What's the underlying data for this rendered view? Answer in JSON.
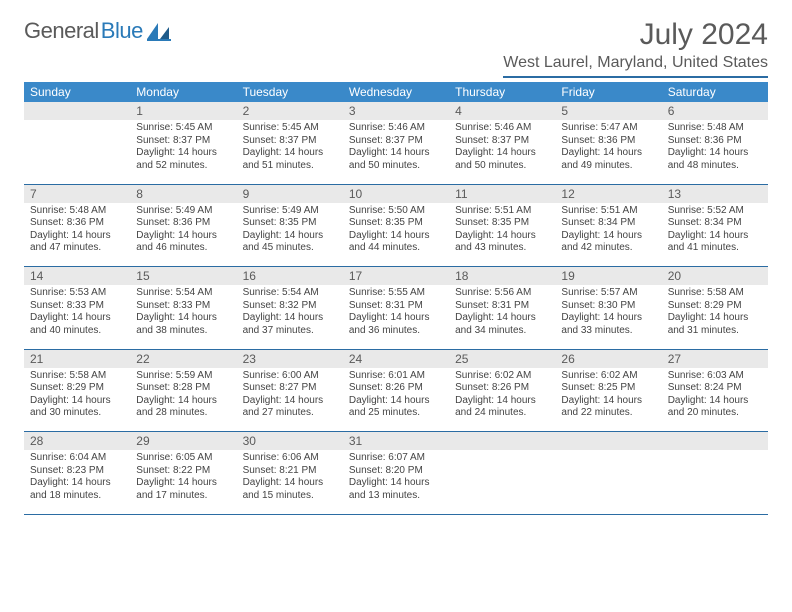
{
  "brand": {
    "part1": "General",
    "part2": "Blue",
    "icon_color": "#2a7ab8"
  },
  "title": {
    "month_year": "July 2024",
    "location": "West Laurel, Maryland, United States"
  },
  "colors": {
    "header_bg": "#3a89c9",
    "header_text": "#ffffff",
    "daynum_bg": "#e9e9e9",
    "rule": "#2b6ca3",
    "text": "#444444"
  },
  "weekdays": [
    "Sunday",
    "Monday",
    "Tuesday",
    "Wednesday",
    "Thursday",
    "Friday",
    "Saturday"
  ],
  "weeks": [
    {
      "days": [
        {
          "num": "",
          "lines": []
        },
        {
          "num": "1",
          "lines": [
            "Sunrise: 5:45 AM",
            "Sunset: 8:37 PM",
            "Daylight: 14 hours and 52 minutes."
          ]
        },
        {
          "num": "2",
          "lines": [
            "Sunrise: 5:45 AM",
            "Sunset: 8:37 PM",
            "Daylight: 14 hours and 51 minutes."
          ]
        },
        {
          "num": "3",
          "lines": [
            "Sunrise: 5:46 AM",
            "Sunset: 8:37 PM",
            "Daylight: 14 hours and 50 minutes."
          ]
        },
        {
          "num": "4",
          "lines": [
            "Sunrise: 5:46 AM",
            "Sunset: 8:37 PM",
            "Daylight: 14 hours and 50 minutes."
          ]
        },
        {
          "num": "5",
          "lines": [
            "Sunrise: 5:47 AM",
            "Sunset: 8:36 PM",
            "Daylight: 14 hours and 49 minutes."
          ]
        },
        {
          "num": "6",
          "lines": [
            "Sunrise: 5:48 AM",
            "Sunset: 8:36 PM",
            "Daylight: 14 hours and 48 minutes."
          ]
        }
      ]
    },
    {
      "days": [
        {
          "num": "7",
          "lines": [
            "Sunrise: 5:48 AM",
            "Sunset: 8:36 PM",
            "Daylight: 14 hours and 47 minutes."
          ]
        },
        {
          "num": "8",
          "lines": [
            "Sunrise: 5:49 AM",
            "Sunset: 8:36 PM",
            "Daylight: 14 hours and 46 minutes."
          ]
        },
        {
          "num": "9",
          "lines": [
            "Sunrise: 5:49 AM",
            "Sunset: 8:35 PM",
            "Daylight: 14 hours and 45 minutes."
          ]
        },
        {
          "num": "10",
          "lines": [
            "Sunrise: 5:50 AM",
            "Sunset: 8:35 PM",
            "Daylight: 14 hours and 44 minutes."
          ]
        },
        {
          "num": "11",
          "lines": [
            "Sunrise: 5:51 AM",
            "Sunset: 8:35 PM",
            "Daylight: 14 hours and 43 minutes."
          ]
        },
        {
          "num": "12",
          "lines": [
            "Sunrise: 5:51 AM",
            "Sunset: 8:34 PM",
            "Daylight: 14 hours and 42 minutes."
          ]
        },
        {
          "num": "13",
          "lines": [
            "Sunrise: 5:52 AM",
            "Sunset: 8:34 PM",
            "Daylight: 14 hours and 41 minutes."
          ]
        }
      ]
    },
    {
      "days": [
        {
          "num": "14",
          "lines": [
            "Sunrise: 5:53 AM",
            "Sunset: 8:33 PM",
            "Daylight: 14 hours and 40 minutes."
          ]
        },
        {
          "num": "15",
          "lines": [
            "Sunrise: 5:54 AM",
            "Sunset: 8:33 PM",
            "Daylight: 14 hours and 38 minutes."
          ]
        },
        {
          "num": "16",
          "lines": [
            "Sunrise: 5:54 AM",
            "Sunset: 8:32 PM",
            "Daylight: 14 hours and 37 minutes."
          ]
        },
        {
          "num": "17",
          "lines": [
            "Sunrise: 5:55 AM",
            "Sunset: 8:31 PM",
            "Daylight: 14 hours and 36 minutes."
          ]
        },
        {
          "num": "18",
          "lines": [
            "Sunrise: 5:56 AM",
            "Sunset: 8:31 PM",
            "Daylight: 14 hours and 34 minutes."
          ]
        },
        {
          "num": "19",
          "lines": [
            "Sunrise: 5:57 AM",
            "Sunset: 8:30 PM",
            "Daylight: 14 hours and 33 minutes."
          ]
        },
        {
          "num": "20",
          "lines": [
            "Sunrise: 5:58 AM",
            "Sunset: 8:29 PM",
            "Daylight: 14 hours and 31 minutes."
          ]
        }
      ]
    },
    {
      "days": [
        {
          "num": "21",
          "lines": [
            "Sunrise: 5:58 AM",
            "Sunset: 8:29 PM",
            "Daylight: 14 hours and 30 minutes."
          ]
        },
        {
          "num": "22",
          "lines": [
            "Sunrise: 5:59 AM",
            "Sunset: 8:28 PM",
            "Daylight: 14 hours and 28 minutes."
          ]
        },
        {
          "num": "23",
          "lines": [
            "Sunrise: 6:00 AM",
            "Sunset: 8:27 PM",
            "Daylight: 14 hours and 27 minutes."
          ]
        },
        {
          "num": "24",
          "lines": [
            "Sunrise: 6:01 AM",
            "Sunset: 8:26 PM",
            "Daylight: 14 hours and 25 minutes."
          ]
        },
        {
          "num": "25",
          "lines": [
            "Sunrise: 6:02 AM",
            "Sunset: 8:26 PM",
            "Daylight: 14 hours and 24 minutes."
          ]
        },
        {
          "num": "26",
          "lines": [
            "Sunrise: 6:02 AM",
            "Sunset: 8:25 PM",
            "Daylight: 14 hours and 22 minutes."
          ]
        },
        {
          "num": "27",
          "lines": [
            "Sunrise: 6:03 AM",
            "Sunset: 8:24 PM",
            "Daylight: 14 hours and 20 minutes."
          ]
        }
      ]
    },
    {
      "days": [
        {
          "num": "28",
          "lines": [
            "Sunrise: 6:04 AM",
            "Sunset: 8:23 PM",
            "Daylight: 14 hours and 18 minutes."
          ]
        },
        {
          "num": "29",
          "lines": [
            "Sunrise: 6:05 AM",
            "Sunset: 8:22 PM",
            "Daylight: 14 hours and 17 minutes."
          ]
        },
        {
          "num": "30",
          "lines": [
            "Sunrise: 6:06 AM",
            "Sunset: 8:21 PM",
            "Daylight: 14 hours and 15 minutes."
          ]
        },
        {
          "num": "31",
          "lines": [
            "Sunrise: 6:07 AM",
            "Sunset: 8:20 PM",
            "Daylight: 14 hours and 13 minutes."
          ]
        },
        {
          "num": "",
          "lines": []
        },
        {
          "num": "",
          "lines": []
        },
        {
          "num": "",
          "lines": []
        }
      ]
    }
  ]
}
